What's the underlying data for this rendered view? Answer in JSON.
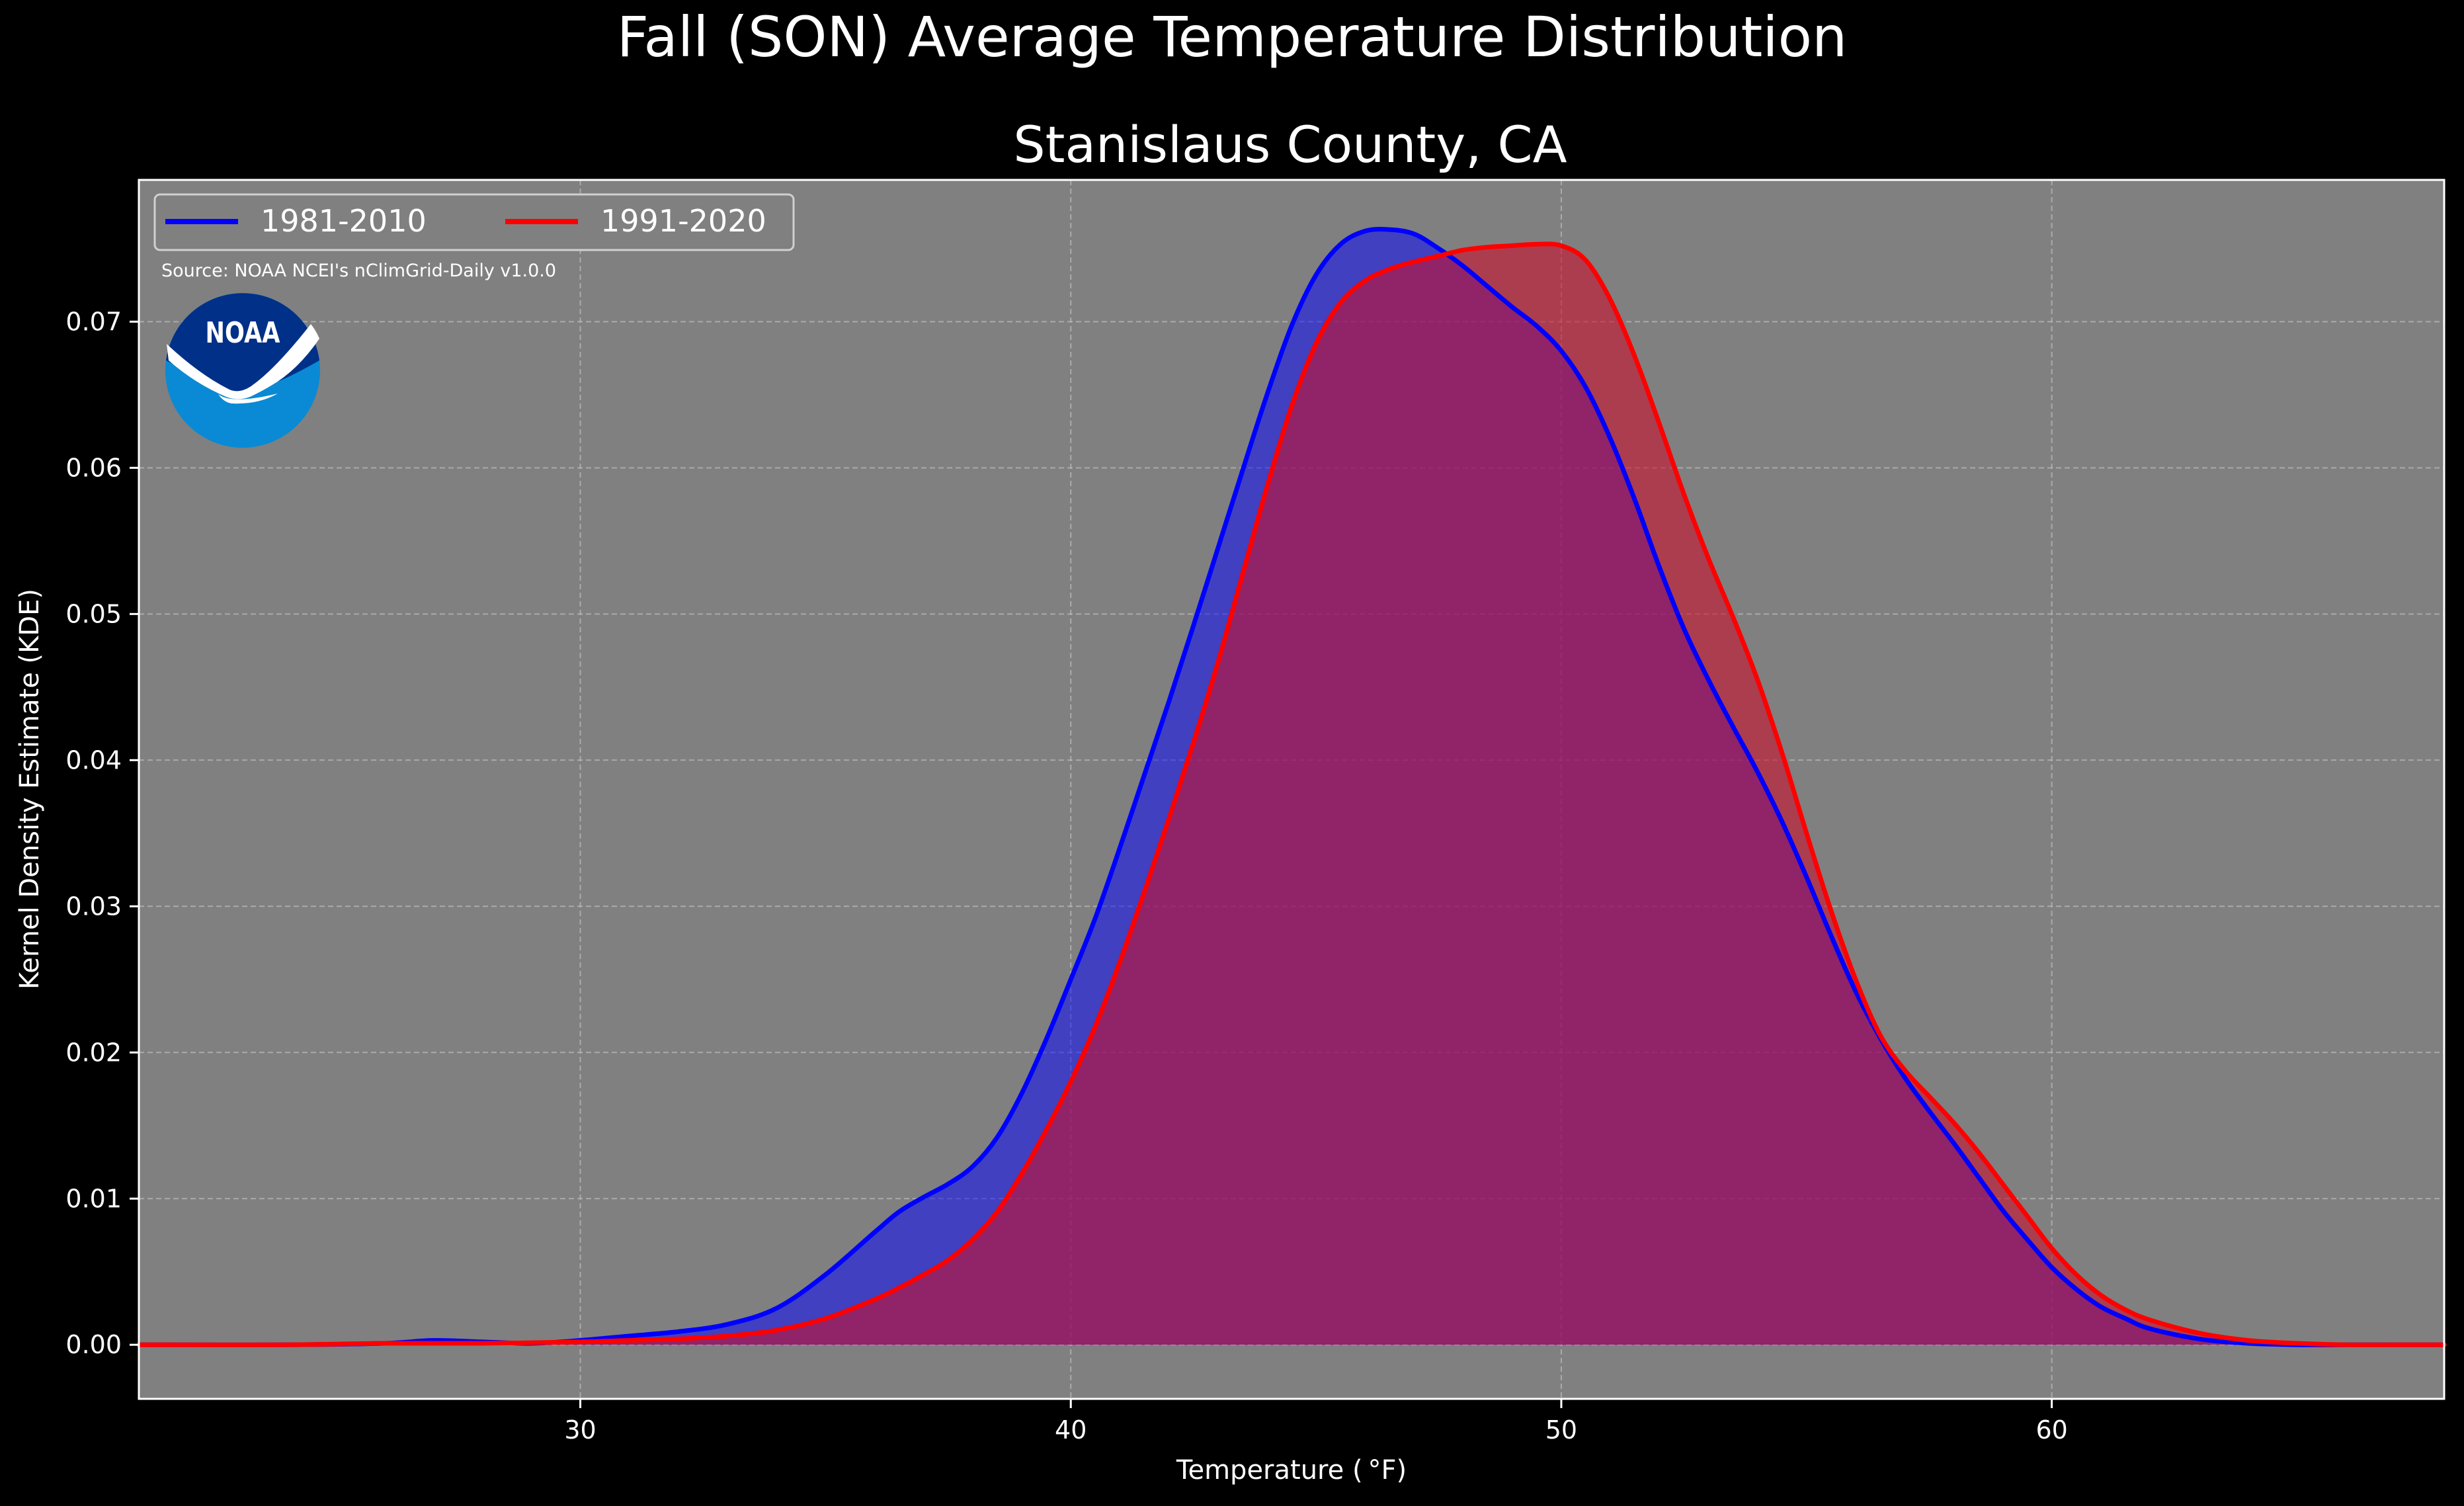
{
  "chart_data": {
    "type": "area",
    "title": "Fall (SON) Average Temperature Distribution",
    "subtitle": "Stanislaus County, CA",
    "xlabel": "Temperature ($^\\circ$F)",
    "xlabel_display": "Temperature ( °F)",
    "ylabel": "Kernel Density Estimate (KDE)",
    "source_text": "Source: NOAA NCEI's nClimGrid-Daily v1.0.0",
    "logo_text": "NOAA",
    "xlim": [
      21,
      68
    ],
    "ylim": [
      -0.0037,
      0.0797
    ],
    "x_ticks": [
      30,
      40,
      50,
      60
    ],
    "x_tick_labels": [
      "30",
      "40",
      "50",
      "60"
    ],
    "y_ticks": [
      0.0,
      0.01,
      0.02,
      0.03,
      0.04,
      0.05,
      0.06,
      0.07
    ],
    "y_tick_labels": [
      "0.00",
      "0.01",
      "0.02",
      "0.03",
      "0.04",
      "0.05",
      "0.06",
      "0.07"
    ],
    "grid": true,
    "legend_position": "top-left",
    "legend_columns": 2,
    "colors": {
      "background": "#000000",
      "plot_background": "#808080",
      "grid": "#bdbdbd",
      "text": "#ffffff"
    },
    "series": [
      {
        "name": "1981-2010",
        "color": "#0000ff",
        "fill": "#0000ff",
        "fill_opacity": 0.5,
        "x": [
          21,
          24,
          26,
          27,
          28,
          29,
          30,
          31,
          32,
          33,
          34,
          35,
          36,
          36.5,
          37,
          37.5,
          38,
          38.5,
          39,
          39.5,
          40,
          40.5,
          41,
          41.5,
          42,
          42.5,
          43,
          43.5,
          44,
          44.5,
          45,
          45.5,
          46,
          46.5,
          47,
          47.5,
          48,
          48.5,
          49,
          49.5,
          50,
          50.5,
          51,
          51.5,
          52,
          52.5,
          53,
          53.5,
          54,
          54.5,
          55,
          55.5,
          56,
          56.5,
          57,
          57.5,
          58,
          58.5,
          59,
          59.5,
          60,
          60.5,
          61,
          61.5,
          62,
          63,
          64,
          65,
          66,
          67,
          68
        ],
        "y": [
          0,
          0,
          0.0001,
          0.0003,
          0.0002,
          0.0001,
          0.0003,
          0.0006,
          0.0009,
          0.0014,
          0.0025,
          0.0048,
          0.0077,
          0.0091,
          0.0101,
          0.011,
          0.0122,
          0.0142,
          0.0172,
          0.0209,
          0.025,
          0.0292,
          0.034,
          0.039,
          0.044,
          0.0492,
          0.0545,
          0.0598,
          0.065,
          0.0697,
          0.0732,
          0.0753,
          0.0762,
          0.0763,
          0.076,
          0.075,
          0.0738,
          0.0724,
          0.071,
          0.0697,
          0.068,
          0.0655,
          0.062,
          0.0578,
          0.0532,
          0.049,
          0.0455,
          0.0423,
          0.0392,
          0.0358,
          0.032,
          0.028,
          0.0242,
          0.021,
          0.0183,
          0.016,
          0.0138,
          0.0115,
          0.0092,
          0.0072,
          0.0053,
          0.0038,
          0.0026,
          0.0018,
          0.0011,
          0.0004,
          0.0001,
          0,
          0,
          0,
          0
        ]
      },
      {
        "name": "1991-2020",
        "color": "#ff0000",
        "fill": "#c8102e",
        "fill_opacity": 0.6,
        "x": [
          21,
          24,
          26,
          28,
          30,
          31,
          32,
          33,
          34,
          35,
          36,
          36.5,
          37,
          37.5,
          38,
          38.5,
          39,
          39.5,
          40,
          40.5,
          41,
          41.5,
          42,
          42.5,
          43,
          43.5,
          44,
          44.5,
          45,
          45.5,
          46,
          46.5,
          47,
          47.5,
          48,
          48.5,
          49,
          49.5,
          50,
          50.5,
          51,
          51.5,
          52,
          52.5,
          53,
          53.5,
          54,
          54.5,
          55,
          55.5,
          56,
          56.5,
          57,
          57.5,
          58,
          58.5,
          59,
          59.5,
          60,
          60.5,
          61,
          61.5,
          62,
          63,
          64,
          65,
          66,
          67,
          68
        ],
        "y": [
          0,
          0,
          0.0001,
          0.0001,
          0.0002,
          0.0003,
          0.0004,
          0.0006,
          0.001,
          0.0018,
          0.0031,
          0.0039,
          0.0048,
          0.0058,
          0.0072,
          0.0091,
          0.0117,
          0.0147,
          0.018,
          0.0218,
          0.0262,
          0.031,
          0.036,
          0.0412,
          0.0467,
          0.0527,
          0.0587,
          0.0642,
          0.0685,
          0.0713,
          0.0728,
          0.0736,
          0.0741,
          0.0745,
          0.0749,
          0.0751,
          0.0752,
          0.0753,
          0.0752,
          0.0742,
          0.0715,
          0.0676,
          0.063,
          0.0582,
          0.0538,
          0.0498,
          0.0455,
          0.0405,
          0.035,
          0.0297,
          0.025,
          0.0212,
          0.0188,
          0.017,
          0.0152,
          0.0132,
          0.011,
          0.0088,
          0.0066,
          0.0048,
          0.0034,
          0.0024,
          0.0017,
          0.0008,
          0.0003,
          0.0001,
          0,
          0,
          0
        ]
      }
    ]
  }
}
